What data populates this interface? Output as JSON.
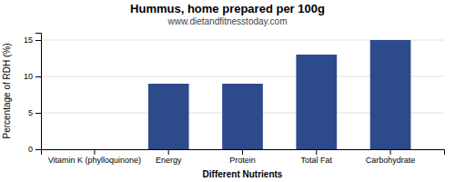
{
  "chart_data": {
    "type": "bar",
    "title": "Hummus, home prepared per 100g",
    "subtitle": "www.dietandfitnesstoday.com",
    "xlabel": "Different Nutrients",
    "ylabel": "Percentage of RDH (%)",
    "categories": [
      "Vitamin K (phylloquinone)",
      "Energy",
      "Protein",
      "Total Fat",
      "Carbohydrate"
    ],
    "values": [
      0,
      9,
      9,
      13,
      15
    ],
    "color": "#2d4a8a",
    "ylim": [
      0,
      16
    ],
    "yticks": [
      0,
      5,
      10,
      15
    ],
    "grid": true
  }
}
